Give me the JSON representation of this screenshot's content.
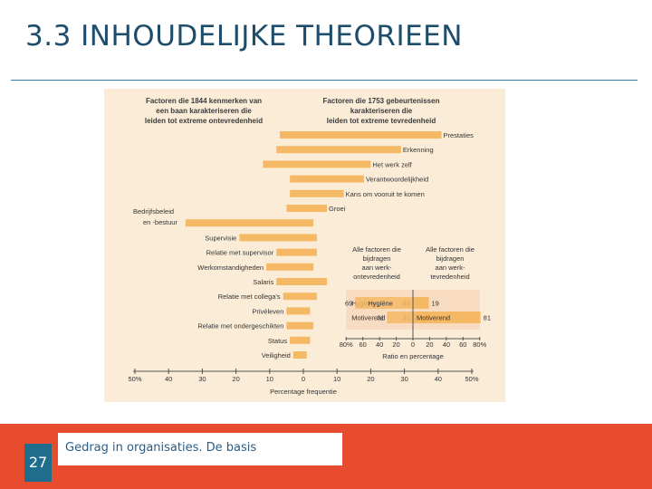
{
  "slide": {
    "title": "3.3 INHOUDELIJKE THEORIEEN",
    "footer_text": "Gedrag in organisaties. De basis",
    "page_number": "27"
  },
  "colors": {
    "bar": "#f5b965",
    "figure_bg": "#fbecd8",
    "footer_band": "#e84c2f",
    "page_number_box": "#1e6d8c",
    "title": "#1e4d6b"
  },
  "chart_data": {
    "type": "bar",
    "orientation": "horizontal",
    "left_header": [
      "Factoren die 1844 kenmerken van",
      "een baan karakteriseren die",
      "leiden tot extreme ontevredenheid"
    ],
    "right_header": [
      "Factoren die 1753 gebeurtenissen",
      "karakteriseren die",
      "leiden tot extreme tevredenheid"
    ],
    "categories": [
      {
        "label": "Prestaties",
        "label_lines": [
          "Prestaties"
        ],
        "dissatisfaction": -7,
        "satisfaction": 41
      },
      {
        "label": "Erkenning",
        "label_lines": [
          "Erkenning"
        ],
        "dissatisfaction": -8,
        "satisfaction": 29
      },
      {
        "label": "Het werk zelf",
        "label_lines": [
          "Het werk zelf"
        ],
        "dissatisfaction": -12,
        "satisfaction": 20
      },
      {
        "label": "Verantwoordelijkheid",
        "label_lines": [
          "Verantwoordelijkheid"
        ],
        "dissatisfaction": -4,
        "satisfaction": 18
      },
      {
        "label": "Kans om vooruit te komen",
        "label_lines": [
          "Kans om vooruit te komen"
        ],
        "dissatisfaction": -4,
        "satisfaction": 12
      },
      {
        "label": "Groei",
        "label_lines": [
          "Groei"
        ],
        "dissatisfaction": -5,
        "satisfaction": 7
      },
      {
        "label": "Bedrijfsbeleid en -bestuur",
        "label_lines": [
          "Bedrijfsbeleid",
          "en -bestuur"
        ],
        "dissatisfaction": -35,
        "satisfaction": 3
      },
      {
        "label": "Supervisie",
        "label_lines": [
          "Supervisie"
        ],
        "dissatisfaction": -19,
        "satisfaction": 4
      },
      {
        "label": "Relatie met supervisor",
        "label_lines": [
          "Relatie met supervisor"
        ],
        "dissatisfaction": -8,
        "satisfaction": 4
      },
      {
        "label": "Werkomstandigheden",
        "label_lines": [
          "Werkomstandigheden"
        ],
        "dissatisfaction": -11,
        "satisfaction": 3
      },
      {
        "label": "Salaris",
        "label_lines": [
          "Salaris"
        ],
        "dissatisfaction": -8,
        "satisfaction": 7
      },
      {
        "label": "Relatie met collega's",
        "label_lines": [
          "Relatie met collega's"
        ],
        "dissatisfaction": -6,
        "satisfaction": 4
      },
      {
        "label": "Privéleven",
        "label_lines": [
          "Privéleven"
        ],
        "dissatisfaction": -5,
        "satisfaction": 2
      },
      {
        "label": "Relatie met ondergeschikten",
        "label_lines": [
          "Relatie met ondergeschikten"
        ],
        "dissatisfaction": -5,
        "satisfaction": 3
      },
      {
        "label": "Status",
        "label_lines": [
          "Status"
        ],
        "dissatisfaction": -4,
        "satisfaction": 2
      },
      {
        "label": "Veiligheid",
        "label_lines": [
          "Veiligheid"
        ],
        "dissatisfaction": -3,
        "satisfaction": 1
      }
    ],
    "xlim": [
      -50,
      50
    ],
    "x_ticks": [
      {
        "value": -50,
        "label": "50%"
      },
      {
        "value": -40,
        "label": "40"
      },
      {
        "value": -30,
        "label": "30"
      },
      {
        "value": -20,
        "label": "20"
      },
      {
        "value": -10,
        "label": "10"
      },
      {
        "value": 0,
        "label": "0"
      },
      {
        "value": 10,
        "label": "10"
      },
      {
        "value": 20,
        "label": "20"
      },
      {
        "value": 30,
        "label": "30"
      },
      {
        "value": 40,
        "label": "40"
      },
      {
        "value": 50,
        "label": "50%"
      }
    ],
    "xlabel": "Percentage frequentie",
    "inset": {
      "type": "bar",
      "left_header": [
        "Alle factoren die",
        "bijdragen",
        "aan werk-",
        "ontevredenheid"
      ],
      "right_header": [
        "Alle factoren die",
        "bijdragen",
        "aan werk-",
        "tevredenheid"
      ],
      "rows": [
        {
          "label": "Hygiëne",
          "dissatisfaction": 69,
          "satisfaction": 19
        },
        {
          "label": "Motiverend",
          "dissatisfaction": 31,
          "satisfaction": 81
        }
      ],
      "xlim": [
        -80,
        80
      ],
      "x_ticks": [
        {
          "value": -80,
          "label": "80%"
        },
        {
          "value": -60,
          "label": "60"
        },
        {
          "value": -40,
          "label": "40"
        },
        {
          "value": -20,
          "label": "20"
        },
        {
          "value": 0,
          "label": "0"
        },
        {
          "value": 20,
          "label": "20"
        },
        {
          "value": 40,
          "label": "40"
        },
        {
          "value": 60,
          "label": "60"
        },
        {
          "value": 80,
          "label": "80%"
        }
      ],
      "xlabel": "Ratio en percentage"
    }
  }
}
